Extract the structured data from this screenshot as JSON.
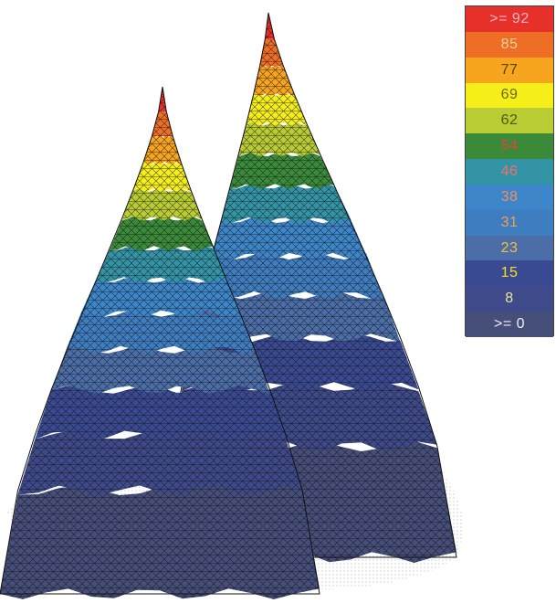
{
  "chart_data": {
    "type": "surface3d",
    "title": "",
    "xlabel": "",
    "ylabel": "",
    "zlabel": "",
    "peaks": [
      {
        "value": 92,
        "shape": "narrow-left"
      },
      {
        "value": 92,
        "shape": "narrow-right"
      }
    ],
    "zlim": [
      0,
      100
    ],
    "colorbar": {
      "placement": "top-right",
      "levels": [
        {
          "label": ">= 92",
          "min": 92,
          "color": "#e8302a",
          "text_color": "#f0b8c8"
        },
        {
          "label": "85",
          "min": 85,
          "color": "#ef6e25",
          "text_color": "#f7d09a"
        },
        {
          "label": "77",
          "min": 77,
          "color": "#f7a41e",
          "text_color": "#5a4500"
        },
        {
          "label": "69",
          "min": 69,
          "color": "#f5ee18",
          "text_color": "#6a6a00"
        },
        {
          "label": "62",
          "min": 62,
          "color": "#b9cc34",
          "text_color": "#4a5a00"
        },
        {
          "label": "54",
          "min": 54,
          "color": "#3a8a3a",
          "text_color": "#e84040"
        },
        {
          "label": "46",
          "min": 46,
          "color": "#3394a6",
          "text_color": "#f07070"
        },
        {
          "label": "38",
          "min": 38,
          "color": "#3d86c9",
          "text_color": "#f09060"
        },
        {
          "label": "31",
          "min": 31,
          "color": "#3e7dc0",
          "text_color": "#f0a050"
        },
        {
          "label": "23",
          "min": 23,
          "color": "#4b6ea8",
          "text_color": "#f0c040"
        },
        {
          "label": "15",
          "min": 15,
          "color": "#3a4a92",
          "text_color": "#f5e020"
        },
        {
          "label": "8",
          "min": 8,
          "color": "#3e4a8a",
          "text_color": "#e8e8a0"
        },
        {
          "label": ">= 0",
          "min": 0,
          "color": "#464e7a",
          "text_color": "#f0f0f0"
        }
      ]
    }
  }
}
